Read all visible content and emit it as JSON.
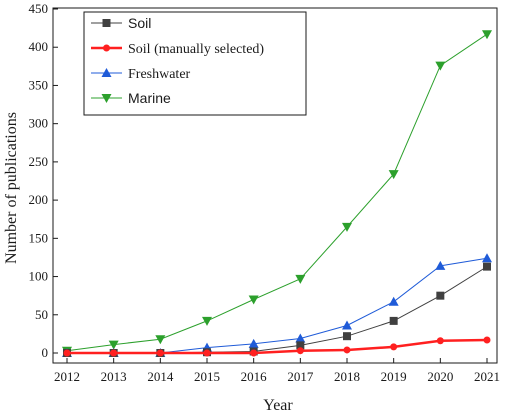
{
  "chart_data": {
    "type": "line",
    "title": "",
    "xlabel": "Year",
    "ylabel": "Number of publications",
    "x": [
      2012,
      2013,
      2014,
      2015,
      2016,
      2017,
      2018,
      2019,
      2020,
      2021
    ],
    "xlim": [
      2012,
      2021
    ],
    "ylim": [
      0,
      450
    ],
    "yticks": [
      0,
      50,
      100,
      150,
      200,
      250,
      300,
      350,
      400,
      450
    ],
    "grid": false,
    "legend_position": "top-left",
    "series": [
      {
        "name": "Soil",
        "marker": "square",
        "color": "#404040",
        "values": [
          0,
          0,
          0,
          1,
          2,
          10,
          22,
          42,
          75,
          113
        ]
      },
      {
        "name": "Soil (manually selected)",
        "marker": "circle",
        "color": "#ff2020",
        "values": [
          0,
          0,
          0,
          0,
          0,
          3,
          4,
          8,
          16,
          17
        ]
      },
      {
        "name": "Freshwater",
        "marker": "triangle-up",
        "color": "#1f5bd8",
        "values": [
          0,
          0,
          0,
          7,
          12,
          19,
          36,
          67,
          114,
          124
        ]
      },
      {
        "name": "Marine",
        "marker": "triangle-down",
        "color": "#2ca02c",
        "values": [
          3,
          11,
          18,
          42,
          70,
          97,
          165,
          234,
          376,
          417
        ]
      }
    ]
  }
}
